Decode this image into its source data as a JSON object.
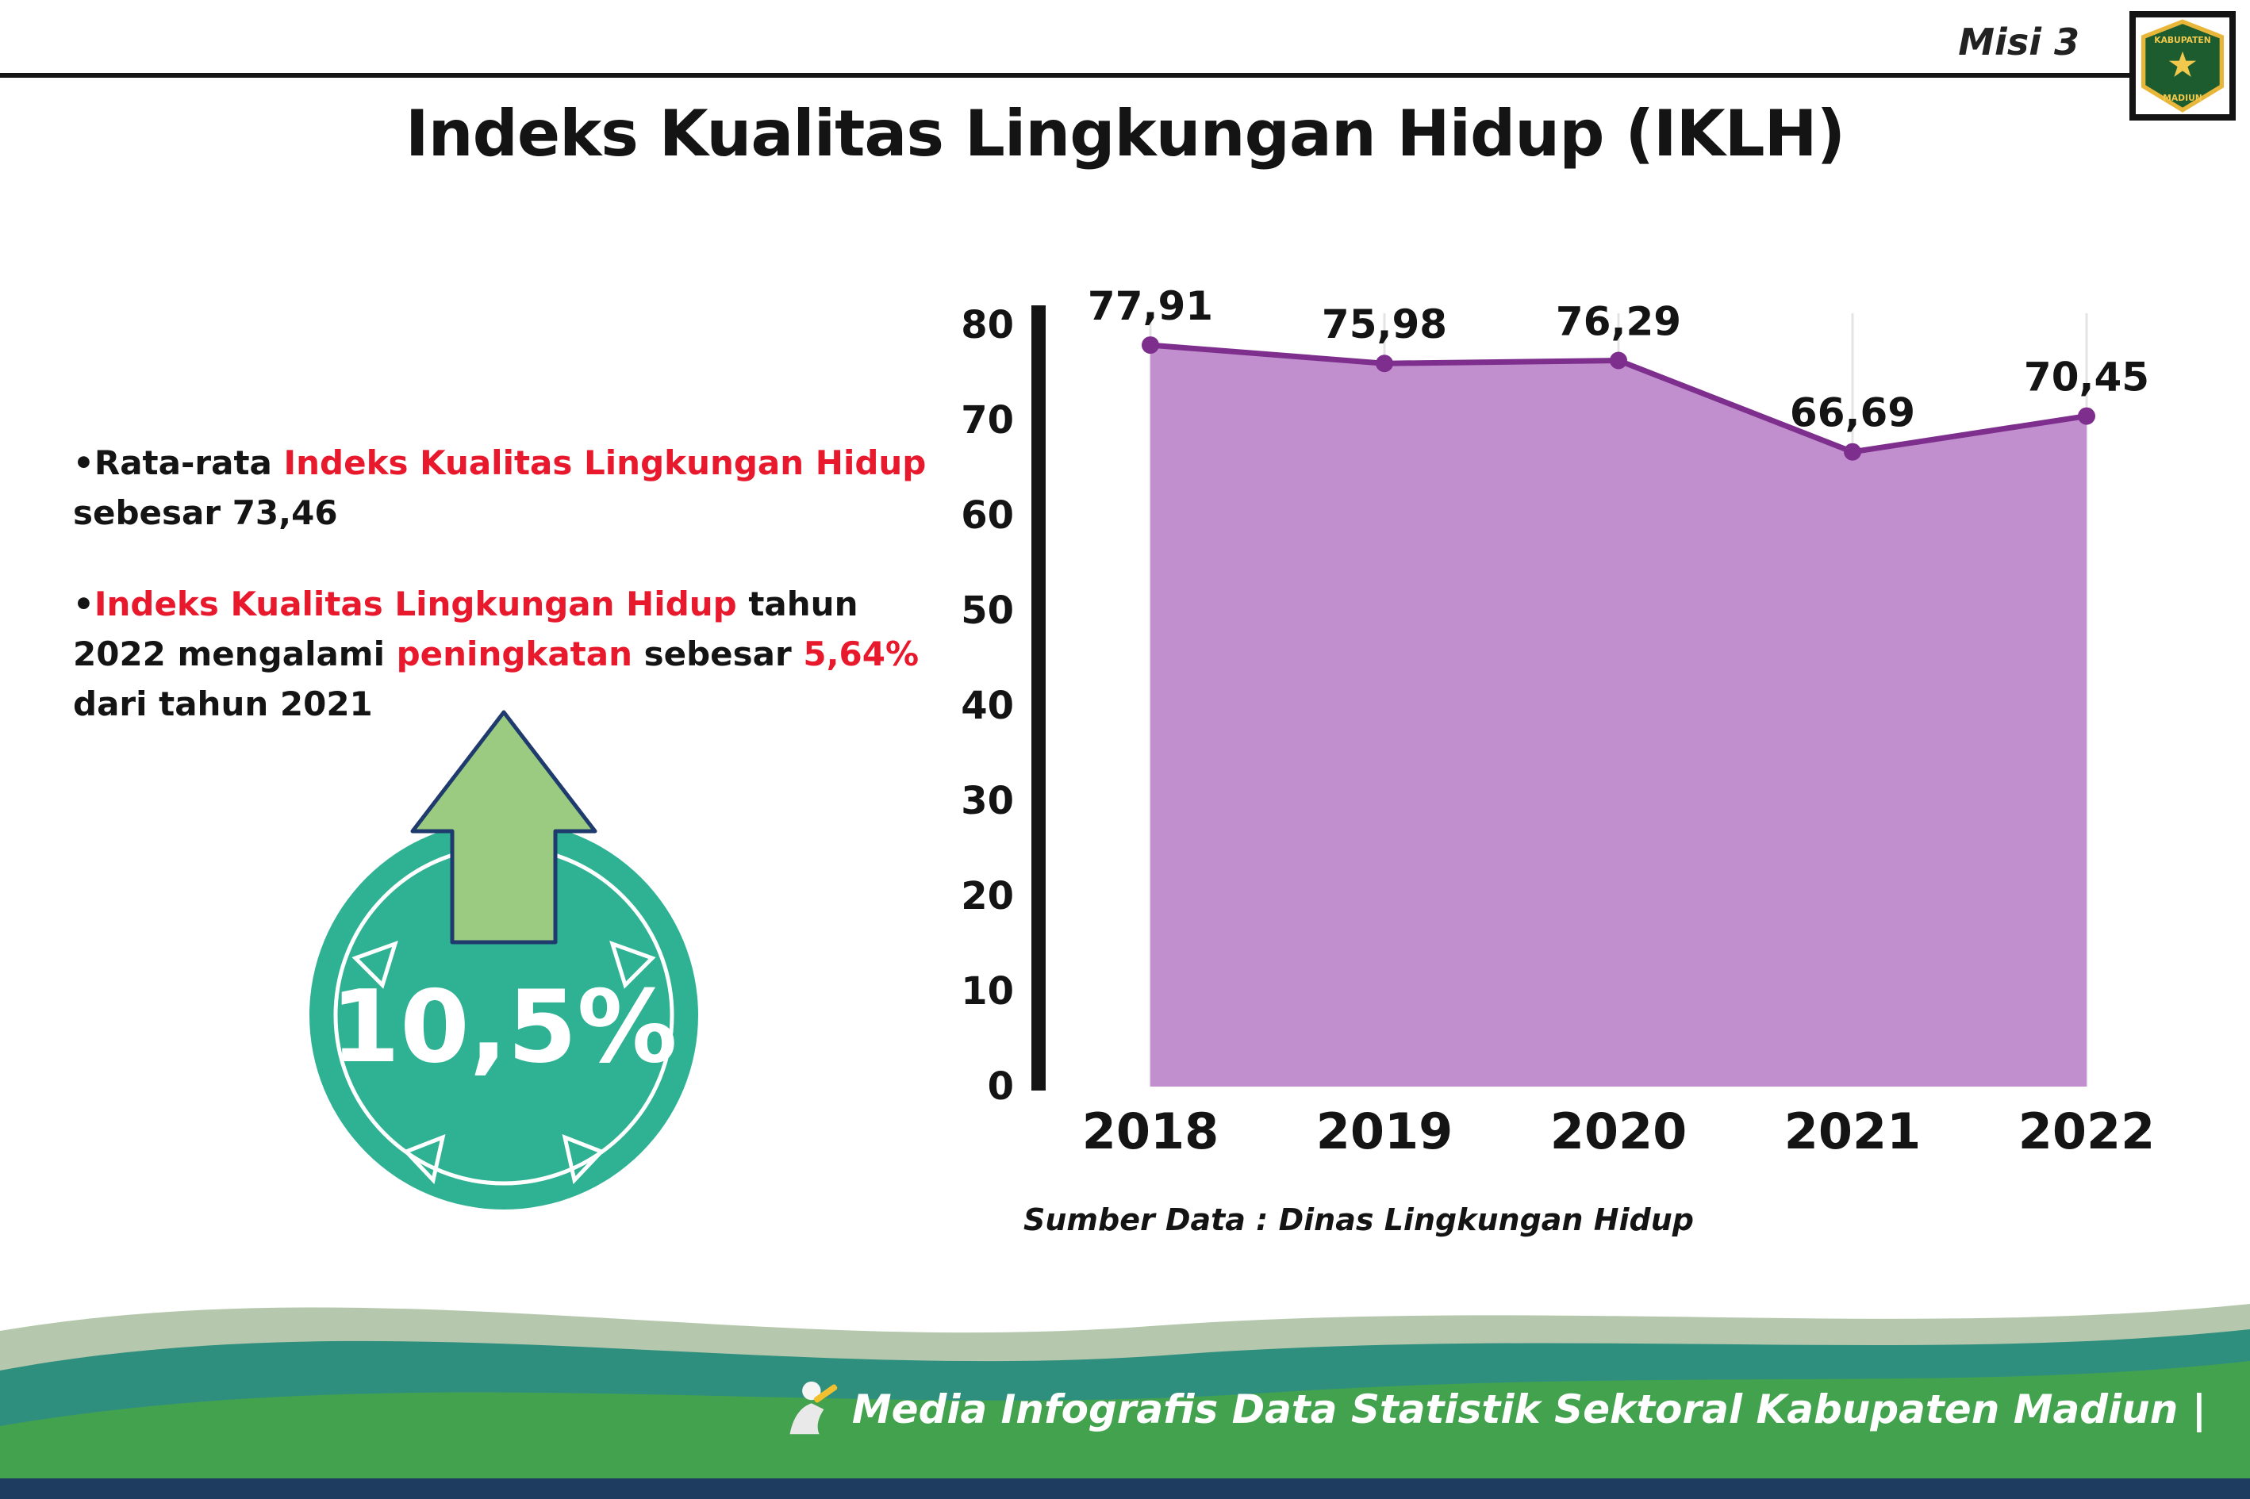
{
  "header": {
    "misi_label": "Misi 3",
    "title": "Indeks Kualitas Lingkungan Hidup (IKLH)"
  },
  "logo": {
    "line1": "KABUPATEN",
    "line2": "MADIUN"
  },
  "bullets": [
    {
      "segments": [
        {
          "text": "Rata-rata ",
          "red": false
        },
        {
          "text": "Indeks Kualitas Lingkungan Hidup",
          "red": true
        },
        {
          "text": " sebesar 73,46",
          "red": false
        }
      ]
    },
    {
      "segments": [
        {
          "text": "Indeks Kualitas Lingkungan Hidup",
          "red": true
        },
        {
          "text": " tahun 2022 mengalami ",
          "red": false
        },
        {
          "text": "peningkatan",
          "red": true
        },
        {
          "text": " sebesar ",
          "red": false
        },
        {
          "text": "5,64%",
          "red": true
        },
        {
          "text": " dari tahun 2021",
          "red": false
        }
      ]
    }
  ],
  "badge": {
    "value": "10,5%"
  },
  "chart_data": {
    "type": "area",
    "title": "Indeks Kualitas Lingkungan Hidup (IKLH)",
    "categories": [
      "2018",
      "2019",
      "2020",
      "2021",
      "2022"
    ],
    "values": [
      77.91,
      75.98,
      76.29,
      66.69,
      70.45
    ],
    "value_labels": [
      "77,91",
      "75,98",
      "76,29",
      "66,69",
      "70,45"
    ],
    "ylim": [
      0,
      80
    ],
    "yticks": [
      0,
      10,
      20,
      30,
      40,
      50,
      60,
      70,
      80
    ],
    "grid": "vertical-light",
    "legend": "none",
    "source": "Sumber Data : Dinas Lingkungan Hidup",
    "colors": {
      "fill": "#c18fce",
      "line": "#7e2f8e",
      "point": "#7e2f8e"
    }
  },
  "footer": {
    "text": "Media Infografis Data Statistik Sektoral Kabupaten Madiun |"
  },
  "colors": {
    "accent_red": "#e8192c",
    "badge_teal": "#2fb293",
    "arrow_green": "#9bcb80",
    "arrow_outline": "#1f3a6d",
    "wave_sage": "#b5c8ad",
    "wave_teal": "#2f8f7e",
    "wave_green": "#43a24e",
    "navy": "#1d3c5f"
  }
}
